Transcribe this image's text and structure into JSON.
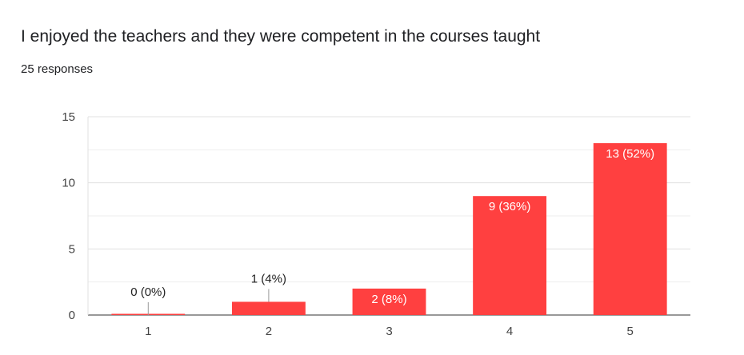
{
  "header": {
    "title": "I enjoyed the teachers and they were competent in the courses taught",
    "responses": "25 responses"
  },
  "chart_data": {
    "type": "bar",
    "categories": [
      "1",
      "2",
      "3",
      "4",
      "5"
    ],
    "values": [
      0,
      1,
      2,
      9,
      13
    ],
    "data_labels": [
      "0 (0%)",
      "1 (4%)",
      "2 (8%)",
      "9 (36%)",
      "13 (52%)"
    ],
    "ylim": [
      0,
      15
    ],
    "yticks": [
      0,
      5,
      10,
      15
    ],
    "grid": true,
    "bar_color": "#ff4040"
  }
}
